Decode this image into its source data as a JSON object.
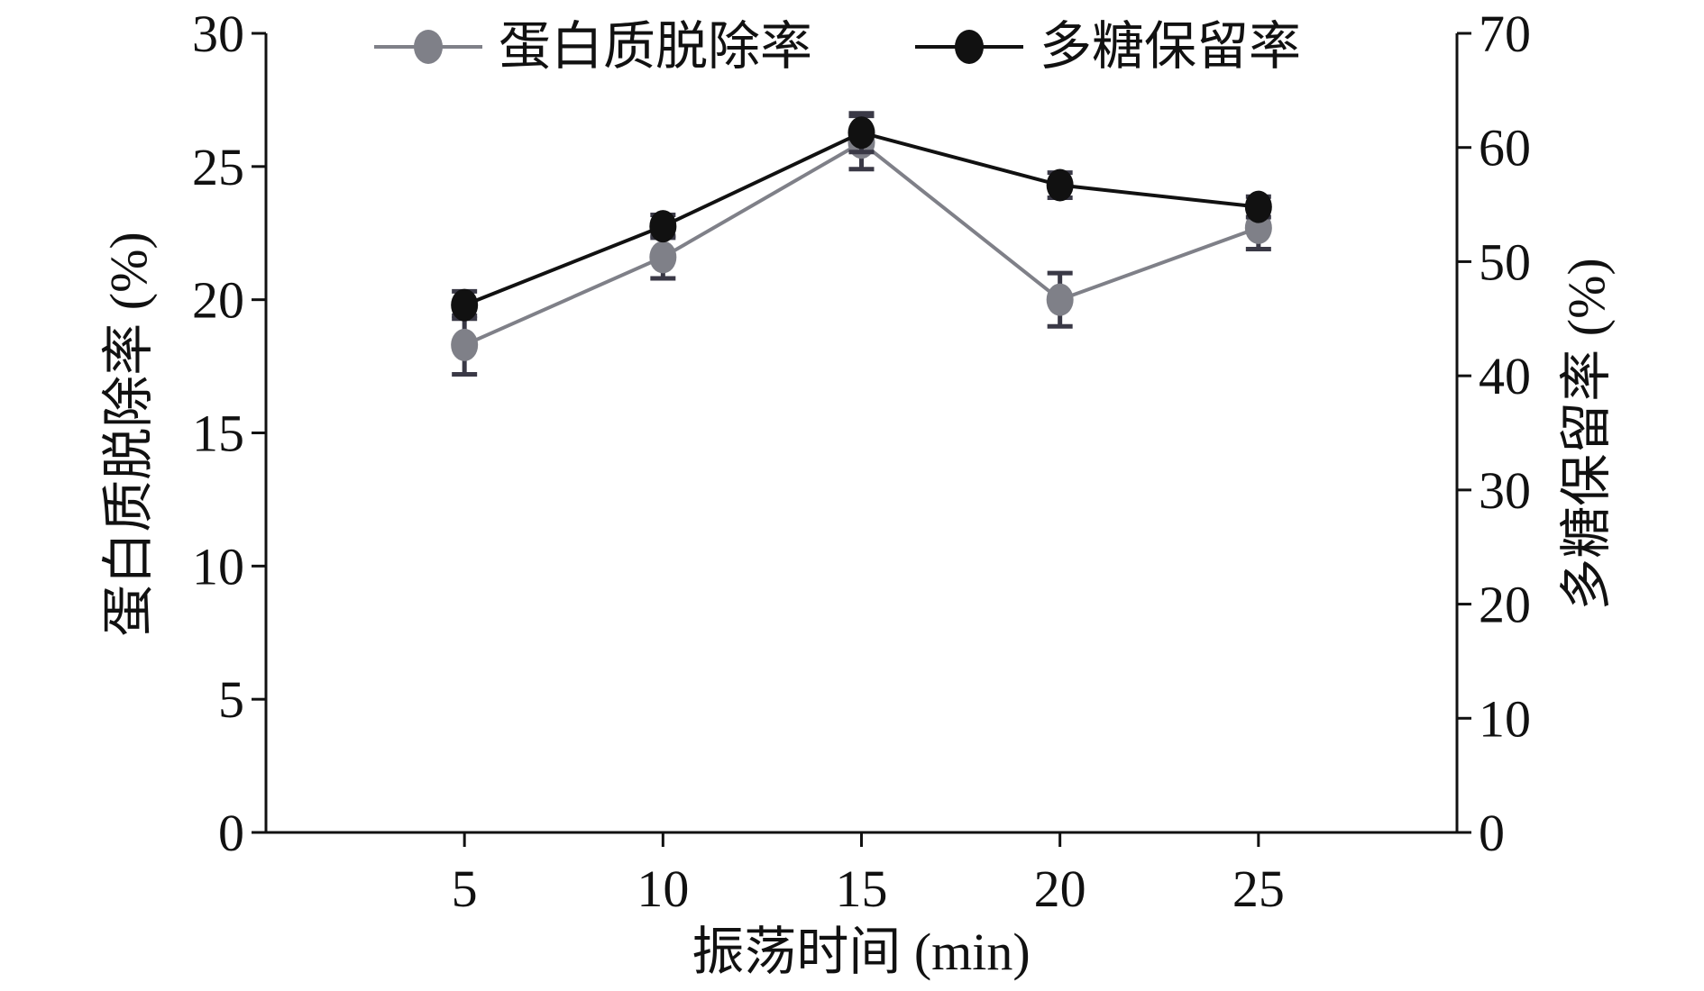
{
  "chart_data": {
    "type": "line",
    "x": [
      5,
      10,
      15,
      20,
      25
    ],
    "x_tick_labels": [
      "5",
      "10",
      "15",
      "20",
      "25"
    ],
    "xlabel": "振荡时间 (min)",
    "ylabel_left": "蛋白质脱除率 (%)",
    "ylabel_right": "多糖保留率 (%)",
    "ylim_left": [
      0,
      30
    ],
    "ylim_right": [
      0,
      70
    ],
    "y_left_ticks": [
      "0",
      "5",
      "10",
      "15",
      "20",
      "25",
      "30"
    ],
    "y_right_ticks": [
      "0",
      "10",
      "20",
      "30",
      "40",
      "50",
      "60",
      "70"
    ],
    "grid": false,
    "legend_position": "top",
    "series": [
      {
        "name": "蛋白质脱除率",
        "axis": "left",
        "color": "#7f8088",
        "values": [
          18.3,
          21.6,
          25.9,
          20.0,
          22.7
        ],
        "errors": [
          1.1,
          0.8,
          1.0,
          1.0,
          0.8
        ]
      },
      {
        "name": "多糖保留率",
        "axis": "right",
        "color": "#111111",
        "values": [
          46.2,
          53.1,
          61.3,
          56.7,
          54.8
        ],
        "errors": [
          1.2,
          1.0,
          1.7,
          1.1,
          0.9
        ]
      }
    ],
    "errorbar_color": "#3a3946"
  }
}
